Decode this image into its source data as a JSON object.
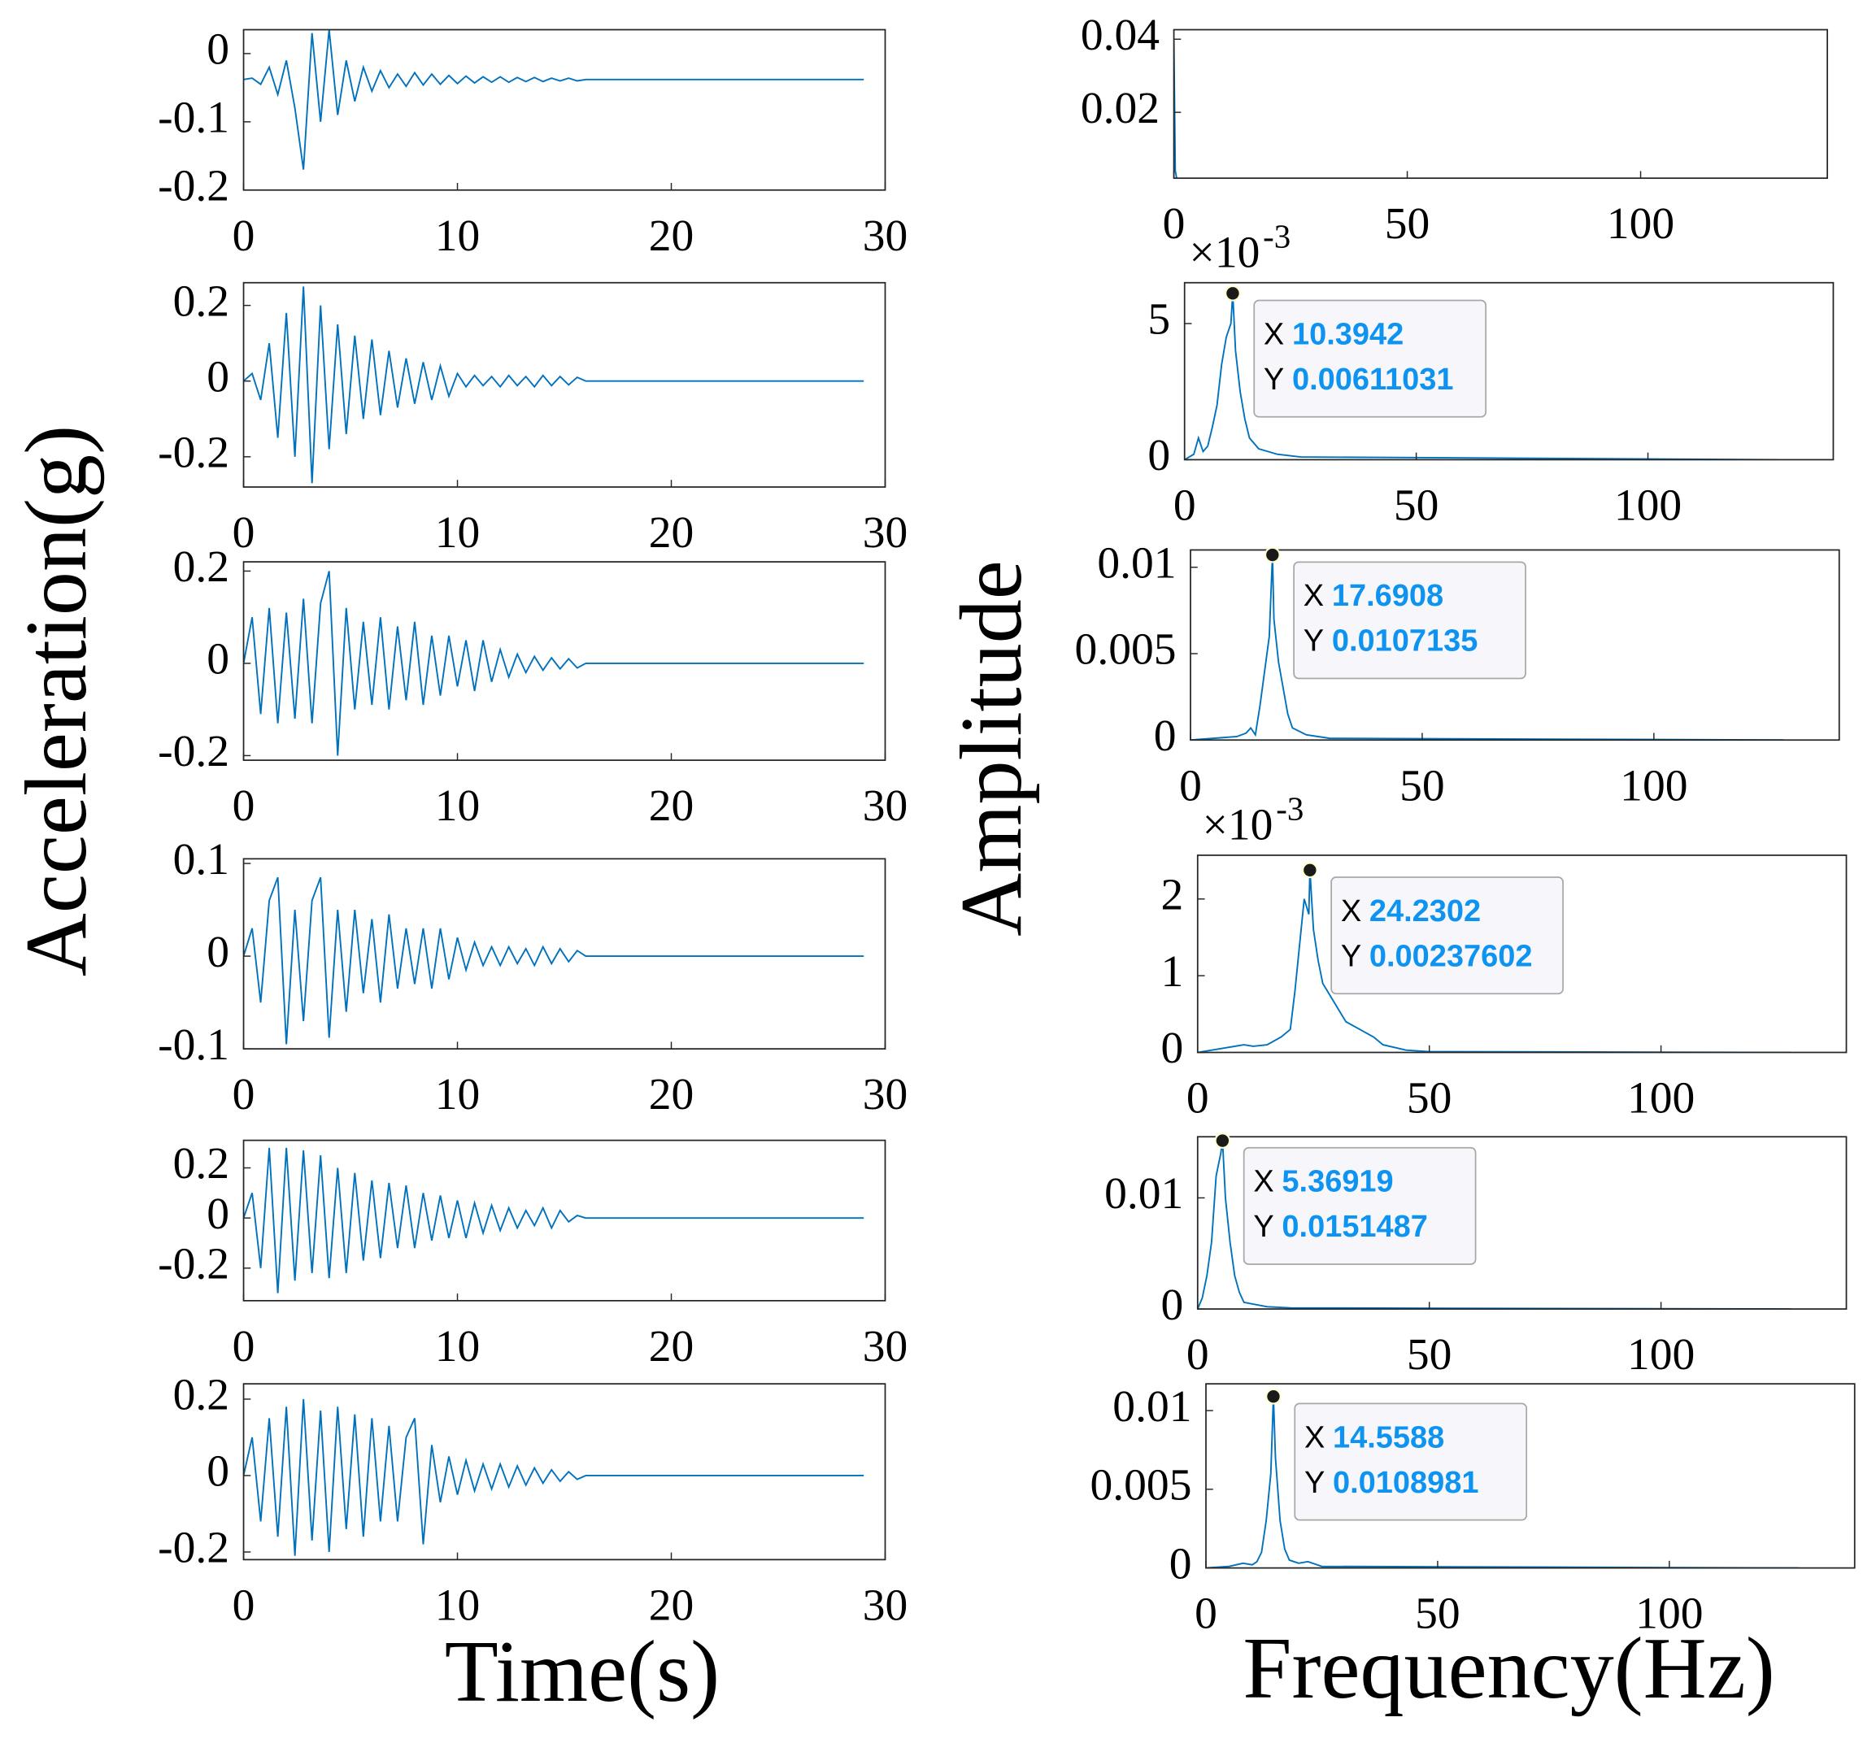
{
  "figure": {
    "ylabel_left": "Acceleration(g)",
    "xlabel_left": "Time(s)",
    "ylabel_right": "Amplitude",
    "xlabel_right": "Frequency(Hz)"
  },
  "chart_data": [
    {
      "type": "line",
      "color": "#0072bd",
      "xlim": [
        0,
        30
      ],
      "ylim": [
        -0.2,
        0.035
      ],
      "xticks": [
        0,
        10,
        20,
        30
      ],
      "yticks": [
        -0.2,
        -0.1,
        0
      ],
      "x": [
        0,
        0.4,
        0.8,
        1.2,
        1.6,
        2,
        2.4,
        2.8,
        3.2,
        3.6,
        4,
        4.4,
        4.8,
        5.2,
        5.6,
        6,
        6.4,
        6.8,
        7.2,
        7.6,
        8,
        8.4,
        8.8,
        9.2,
        9.6,
        10,
        10.4,
        10.8,
        11.2,
        11.6,
        12,
        12.4,
        12.8,
        13.2,
        13.6,
        14,
        14.4,
        14.8,
        15.2,
        15.6,
        16,
        29
      ],
      "values": [
        -0.038,
        -0.036,
        -0.045,
        -0.02,
        -0.06,
        -0.01,
        -0.08,
        -0.17,
        0.03,
        -0.1,
        0.035,
        -0.09,
        -0.01,
        -0.07,
        -0.02,
        -0.055,
        -0.025,
        -0.05,
        -0.03,
        -0.048,
        -0.028,
        -0.046,
        -0.03,
        -0.045,
        -0.032,
        -0.044,
        -0.033,
        -0.043,
        -0.034,
        -0.042,
        -0.034,
        -0.042,
        -0.035,
        -0.041,
        -0.035,
        -0.041,
        -0.036,
        -0.04,
        -0.036,
        -0.04,
        -0.038,
        -0.038
      ]
    },
    {
      "type": "line",
      "color": "#0072bd",
      "xlim": [
        0,
        30
      ],
      "ylim": [
        -0.28,
        0.26
      ],
      "xticks": [
        0,
        10,
        20,
        30
      ],
      "yticks": [
        -0.2,
        0,
        0.2
      ],
      "x": [
        0,
        0.4,
        0.8,
        1.2,
        1.6,
        2,
        2.4,
        2.8,
        3.2,
        3.6,
        4,
        4.4,
        4.8,
        5.2,
        5.6,
        6,
        6.4,
        6.8,
        7.2,
        7.6,
        8,
        8.4,
        8.8,
        9.2,
        9.6,
        10,
        10.4,
        10.8,
        11.2,
        11.6,
        12,
        12.4,
        12.8,
        13.2,
        13.6,
        14,
        14.4,
        14.8,
        15.2,
        15.6,
        16,
        29
      ],
      "values": [
        0,
        0.02,
        -0.05,
        0.1,
        -0.15,
        0.18,
        -0.2,
        0.25,
        -0.27,
        0.2,
        -0.18,
        0.15,
        -0.14,
        0.12,
        -0.1,
        0.11,
        -0.09,
        0.08,
        -0.07,
        0.06,
        -0.06,
        0.05,
        -0.05,
        0.04,
        -0.04,
        0.02,
        -0.015,
        0.015,
        -0.012,
        0.012,
        -0.015,
        0.015,
        -0.012,
        0.012,
        -0.015,
        0.015,
        -0.012,
        0.012,
        -0.01,
        0.01,
        0,
        0
      ]
    },
    {
      "type": "line",
      "color": "#0072bd",
      "xlim": [
        0,
        30
      ],
      "ylim": [
        -0.21,
        0.22
      ],
      "xticks": [
        0,
        10,
        20,
        30
      ],
      "yticks": [
        -0.2,
        0,
        0.2
      ],
      "x": [
        0,
        0.4,
        0.8,
        1.2,
        1.6,
        2,
        2.4,
        2.8,
        3.2,
        3.6,
        4,
        4.4,
        4.8,
        5.2,
        5.6,
        6,
        6.4,
        6.8,
        7.2,
        7.6,
        8,
        8.4,
        8.8,
        9.2,
        9.6,
        10,
        10.4,
        10.8,
        11.2,
        11.6,
        12,
        12.4,
        12.8,
        13.2,
        13.6,
        14,
        14.4,
        14.8,
        15.2,
        15.6,
        16,
        29
      ],
      "values": [
        0,
        0.1,
        -0.11,
        0.12,
        -0.13,
        0.11,
        -0.12,
        0.14,
        -0.13,
        0.13,
        0.2,
        -0.2,
        0.12,
        -0.1,
        0.09,
        -0.09,
        0.1,
        -0.1,
        0.08,
        -0.08,
        0.09,
        -0.09,
        0.06,
        -0.07,
        0.06,
        -0.05,
        0.05,
        -0.06,
        0.05,
        -0.04,
        0.03,
        -0.03,
        0.02,
        -0.02,
        0.015,
        -0.015,
        0.012,
        -0.012,
        0.01,
        -0.01,
        0,
        0
      ]
    },
    {
      "type": "line",
      "color": "#0072bd",
      "xlim": [
        0,
        30
      ],
      "ylim": [
        -0.1,
        0.105
      ],
      "xticks": [
        0,
        10,
        20,
        30
      ],
      "yticks": [
        -0.1,
        0,
        0.1
      ],
      "x": [
        0,
        0.4,
        0.8,
        1.2,
        1.6,
        2,
        2.4,
        2.8,
        3.2,
        3.6,
        4,
        4.4,
        4.8,
        5.2,
        5.6,
        6,
        6.4,
        6.8,
        7.2,
        7.6,
        8,
        8.4,
        8.8,
        9.2,
        9.6,
        10,
        10.4,
        10.8,
        11.2,
        11.6,
        12,
        12.4,
        12.8,
        13.2,
        13.6,
        14,
        14.4,
        14.8,
        15.2,
        15.6,
        16,
        29
      ],
      "values": [
        0,
        0.03,
        -0.05,
        0.06,
        0.085,
        -0.095,
        0.05,
        -0.07,
        0.06,
        0.085,
        -0.088,
        0.05,
        -0.06,
        0.05,
        -0.04,
        0.04,
        -0.05,
        0.045,
        -0.035,
        0.03,
        -0.03,
        0.03,
        -0.035,
        0.03,
        -0.025,
        0.02,
        -0.015,
        0.015,
        -0.01,
        0.01,
        -0.01,
        0.01,
        -0.008,
        0.008,
        -0.01,
        0.01,
        -0.008,
        0.008,
        -0.006,
        0.006,
        0,
        0
      ]
    },
    {
      "type": "line",
      "color": "#0072bd",
      "xlim": [
        0,
        30
      ],
      "ylim": [
        -0.33,
        0.31
      ],
      "xticks": [
        0,
        10,
        20,
        30
      ],
      "yticks": [
        -0.2,
        0,
        0.2
      ],
      "x": [
        0,
        0.4,
        0.8,
        1.2,
        1.6,
        2,
        2.4,
        2.8,
        3.2,
        3.6,
        4,
        4.4,
        4.8,
        5.2,
        5.6,
        6,
        6.4,
        6.8,
        7.2,
        7.6,
        8,
        8.4,
        8.8,
        9.2,
        9.6,
        10,
        10.4,
        10.8,
        11.2,
        11.6,
        12,
        12.4,
        12.8,
        13.2,
        13.6,
        14,
        14.4,
        14.8,
        15.2,
        15.6,
        16,
        29
      ],
      "values": [
        0,
        0.1,
        -0.2,
        0.28,
        -0.3,
        0.28,
        -0.25,
        0.27,
        -0.22,
        0.25,
        -0.24,
        0.2,
        -0.22,
        0.18,
        -0.17,
        0.15,
        -0.16,
        0.14,
        -0.12,
        0.13,
        -0.12,
        0.1,
        -0.09,
        0.09,
        -0.08,
        0.07,
        -0.08,
        0.06,
        -0.06,
        0.05,
        -0.05,
        0.04,
        -0.04,
        0.03,
        -0.03,
        0.04,
        -0.04,
        0.03,
        -0.015,
        0.01,
        0,
        0
      ]
    },
    {
      "type": "line",
      "color": "#0072bd",
      "xlim": [
        0,
        30
      ],
      "ylim": [
        -0.22,
        0.24
      ],
      "xticks": [
        0,
        10,
        20,
        30
      ],
      "yticks": [
        -0.2,
        0,
        0.2
      ],
      "x": [
        0,
        0.4,
        0.8,
        1.2,
        1.6,
        2,
        2.4,
        2.8,
        3.2,
        3.6,
        4,
        4.4,
        4.8,
        5.2,
        5.6,
        6,
        6.4,
        6.8,
        7.2,
        7.6,
        8,
        8.4,
        8.8,
        9.2,
        9.6,
        10,
        10.4,
        10.8,
        11.2,
        11.6,
        12,
        12.4,
        12.8,
        13.2,
        13.6,
        14,
        14.4,
        14.8,
        15.2,
        15.6,
        16,
        29
      ],
      "values": [
        0,
        0.1,
        -0.12,
        0.15,
        -0.16,
        0.18,
        -0.21,
        0.2,
        -0.17,
        0.17,
        -0.2,
        0.18,
        -0.14,
        0.16,
        -0.16,
        0.15,
        -0.12,
        0.13,
        -0.12,
        0.1,
        0.15,
        -0.18,
        0.08,
        -0.07,
        0.05,
        -0.05,
        0.04,
        -0.04,
        0.03,
        -0.035,
        0.03,
        -0.03,
        0.025,
        -0.025,
        0.02,
        -0.02,
        0.015,
        -0.015,
        0.01,
        -0.01,
        0,
        0
      ]
    },
    {
      "type": "line",
      "color": "#0072bd",
      "xlim": [
        0,
        140
      ],
      "ylim": [
        0.002,
        0.0426
      ],
      "xticks": [
        0,
        50,
        100
      ],
      "yticks": [
        0.02,
        0.04
      ],
      "x": [
        0,
        0.3,
        0.6,
        1,
        2,
        3,
        4,
        5,
        128
      ],
      "values": [
        0.04,
        0.004,
        0.002,
        0.001,
        0.0015,
        0.0008,
        0.0015,
        0.0005,
        0.0002
      ]
    },
    {
      "type": "line",
      "color": "#0072bd",
      "xlim": [
        0,
        140
      ],
      "ylim": [
        0,
        0.0065
      ],
      "xticks": [
        0,
        50,
        100
      ],
      "yticks": [
        0,
        {
          "value": 0.005,
          "label": "5"
        }
      ],
      "exponent_label": "×10",
      "exponent": -3,
      "x": [
        0,
        2,
        3,
        4,
        5,
        6,
        7,
        8,
        9,
        10,
        10.3942,
        11,
        12,
        13,
        14,
        16,
        18,
        20,
        25,
        128
      ],
      "values": [
        0,
        0.0002,
        0.0008,
        0.0003,
        0.0005,
        0.0012,
        0.002,
        0.0035,
        0.0045,
        0.005,
        0.00611031,
        0.004,
        0.0025,
        0.0015,
        0.0008,
        0.0004,
        0.0003,
        0.0002,
        0.0001,
        0
      ],
      "datatip": {
        "x_name": "X",
        "y_name": "Y",
        "x": 10.3942,
        "y": 0.00611031
      }
    },
    {
      "type": "line",
      "color": "#0072bd",
      "xlim": [
        0,
        140
      ],
      "ylim": [
        0,
        0.011
      ],
      "xticks": [
        0,
        50,
        100
      ],
      "yticks": [
        0,
        0.005,
        0.01
      ],
      "x": [
        0,
        5,
        10,
        12,
        13,
        14,
        15,
        16,
        17,
        17.6908,
        18,
        19,
        20,
        21,
        22,
        25,
        30,
        128
      ],
      "values": [
        0,
        0.0001,
        0.0002,
        0.0004,
        0.0007,
        0.0003,
        0.002,
        0.004,
        0.006,
        0.0107135,
        0.007,
        0.0045,
        0.003,
        0.0015,
        0.0007,
        0.0003,
        0.0001,
        0
      ],
      "datatip": {
        "x_name": "X",
        "y_name": "Y",
        "x": 17.6908,
        "y": 0.0107135
      }
    },
    {
      "type": "line",
      "color": "#0072bd",
      "xlim": [
        0,
        140
      ],
      "ylim": [
        0,
        0.00257
      ],
      "xticks": [
        0,
        50,
        100
      ],
      "yticks": [
        0,
        {
          "value": 0.001,
          "label": "1"
        },
        {
          "value": 0.002,
          "label": "2"
        }
      ],
      "exponent_label": "×10",
      "exponent": -3,
      "x": [
        0,
        5,
        10,
        12,
        15,
        18,
        20,
        21,
        22,
        23,
        24,
        24.2302,
        25,
        26,
        27,
        28,
        30,
        32,
        35,
        38,
        40,
        45,
        50,
        128
      ],
      "values": [
        0,
        5e-05,
        0.0001,
        8e-05,
        0.0001,
        0.0002,
        0.0003,
        0.0008,
        0.0014,
        0.002,
        0.0018,
        0.00237602,
        0.0016,
        0.0012,
        0.0009,
        0.0008,
        0.0006,
        0.0004,
        0.0003,
        0.0002,
        0.0001,
        3e-05,
        1e-05,
        0
      ],
      "datatip": {
        "x_name": "X",
        "y_name": "Y",
        "x": 24.2302,
        "y": 0.00237602
      }
    },
    {
      "type": "line",
      "color": "#0072bd",
      "xlim": [
        0,
        140
      ],
      "ylim": [
        0,
        0.0155
      ],
      "xticks": [
        0,
        50,
        100
      ],
      "yticks": [
        0,
        0.01
      ],
      "x": [
        0,
        1,
        2,
        3,
        4,
        5,
        5.36919,
        6,
        7,
        8,
        9,
        10,
        15,
        20,
        128
      ],
      "values": [
        0,
        0.001,
        0.003,
        0.006,
        0.012,
        0.014,
        0.0151487,
        0.01,
        0.006,
        0.003,
        0.0015,
        0.0006,
        0.0002,
        0.0001,
        0
      ],
      "datatip": {
        "x_name": "X",
        "y_name": "Y",
        "x": 5.36919,
        "y": 0.0151487
      }
    },
    {
      "type": "line",
      "color": "#0072bd",
      "xlim": [
        0,
        140
      ],
      "ylim": [
        0,
        0.0117
      ],
      "xticks": [
        0,
        50,
        100
      ],
      "yticks": [
        0,
        0.005,
        0.01
      ],
      "x": [
        0,
        5,
        8,
        10,
        11,
        12,
        13,
        14,
        14.5588,
        15,
        16,
        17,
        18,
        20,
        22,
        25,
        128
      ],
      "values": [
        0,
        0.0001,
        0.0003,
        0.0002,
        0.0004,
        0.001,
        0.003,
        0.006,
        0.0108981,
        0.007,
        0.003,
        0.0012,
        0.0005,
        0.0003,
        0.0004,
        0.0001,
        0
      ],
      "datatip": {
        "x_name": "X",
        "y_name": "Y",
        "x": 14.5588,
        "y": 0.0108981
      }
    }
  ]
}
